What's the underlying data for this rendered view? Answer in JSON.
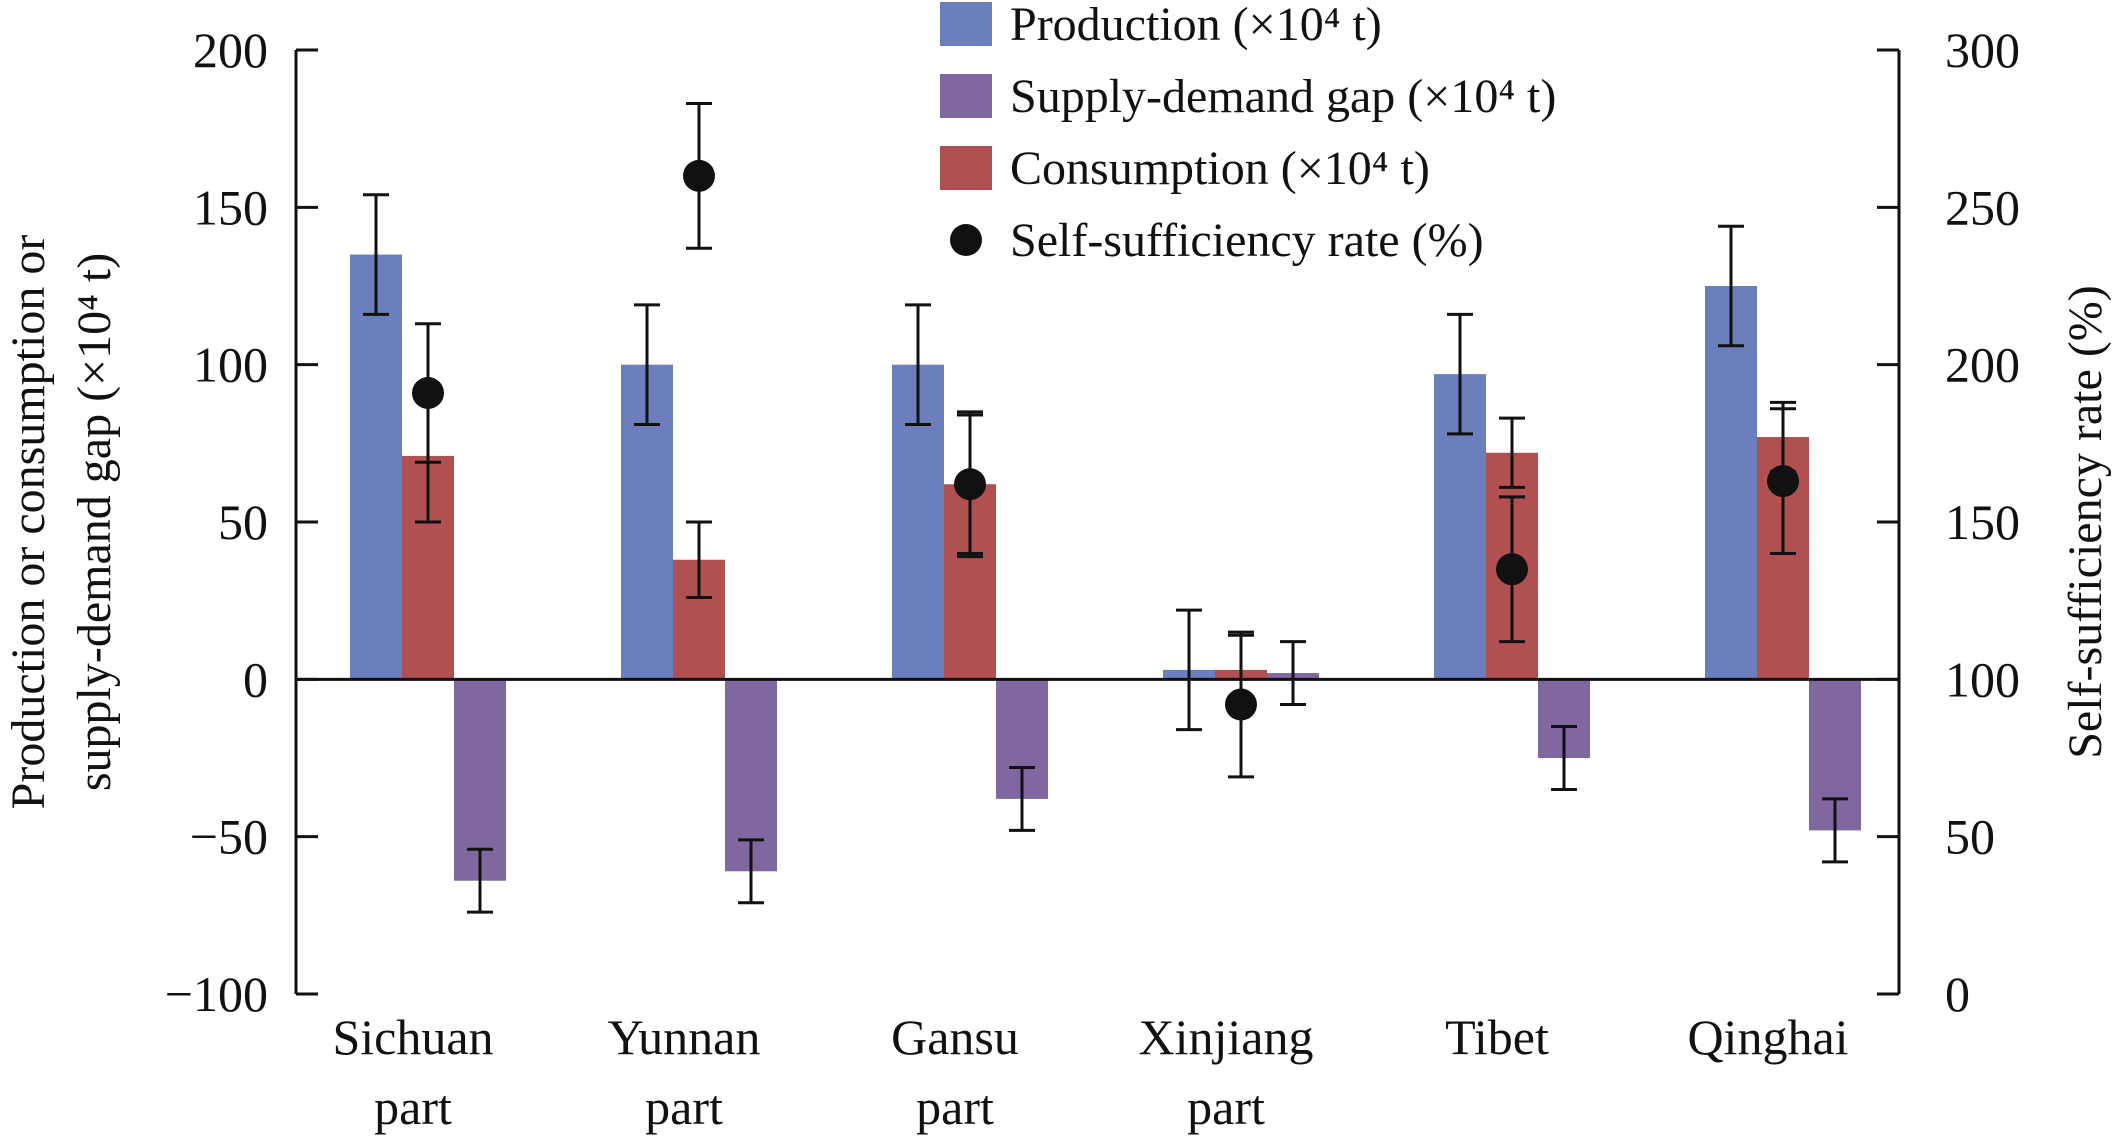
{
  "chart_data": {
    "type": "bar",
    "categories": [
      [
        "Sichuan",
        "part"
      ],
      [
        "Yunnan",
        "part"
      ],
      [
        "Gansu",
        "part"
      ],
      [
        "Xinjiang",
        "part"
      ],
      [
        "Tibet"
      ],
      [
        "Qinghai"
      ]
    ],
    "series": [
      {
        "name": "Production (×10⁴ t)",
        "color": "#6a7fbc",
        "values": [
          135,
          100,
          100,
          3,
          97,
          125
        ],
        "errors": [
          19,
          19,
          19,
          19,
          19,
          19
        ]
      },
      {
        "name": "Consumption (×10⁴ t)",
        "color": "#b05051",
        "values": [
          71,
          38,
          62,
          3,
          72,
          77
        ],
        "errors": [
          21,
          12,
          22,
          11,
          11,
          11
        ]
      },
      {
        "name": "Supply-demand gap (×10⁴ t)",
        "color": "#8067a0",
        "values": [
          -64,
          -61,
          -38,
          2,
          -25,
          -48
        ],
        "errors": [
          10,
          10,
          10,
          10,
          10,
          10
        ]
      }
    ],
    "self_sufficiency": {
      "name": "Self-sufficiency rate (%)",
      "color": "#111111",
      "values": [
        191,
        260,
        162,
        92,
        135,
        163
      ],
      "errors": [
        22,
        23,
        23,
        23,
        23,
        23
      ]
    },
    "legend_order": [
      "Production (×10⁴ t)",
      "Supply-demand gap (×10⁴ t)",
      "Consumption (×10⁴ t)",
      "Self-sufficiency rate (%)"
    ],
    "left_ylabel_lines": [
      "Production or consumption or",
      "supply-demand gap (×10⁴ t)"
    ],
    "right_ylabel": "Self-sufficiency rate (%)",
    "left_ylim": [
      -100,
      200
    ],
    "left_ticks": [
      200,
      150,
      100,
      50,
      0,
      -50,
      -100
    ],
    "left_tick_labels": [
      "200",
      "150",
      "100",
      "50",
      "0",
      "−50",
      "−100"
    ],
    "right_ylim": [
      0,
      300
    ],
    "right_ticks": [
      300,
      250,
      200,
      150,
      100,
      50,
      0
    ],
    "right_tick_labels": [
      "300",
      "250",
      "200",
      "150",
      "100",
      "50",
      "0"
    ],
    "grid": false,
    "legend_position": "top-center"
  }
}
